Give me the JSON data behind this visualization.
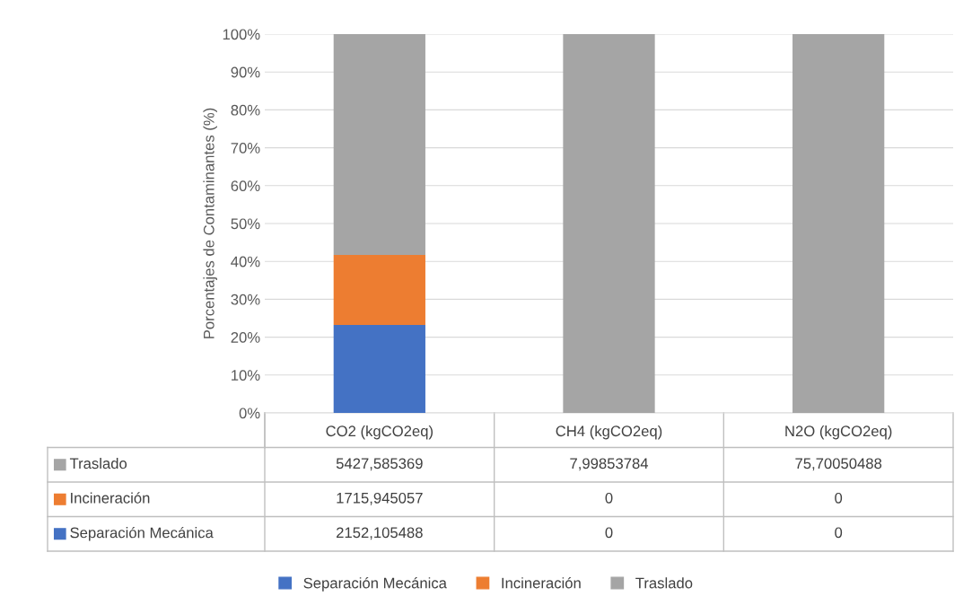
{
  "chart_data": {
    "type": "bar",
    "stacked": true,
    "ylabel": "Porcentajes de Contaminantes (%)",
    "categories": [
      "CO2 (kgCO2eq)",
      "CH4 (kgCO2eq)",
      "N2O (kgCO2eq)"
    ],
    "series": [
      {
        "name": "Separación Mecánica",
        "color": "#4472c4",
        "values": [
          23.2,
          0,
          0
        ],
        "value_labels": [
          "2152,105488",
          "0",
          "0"
        ]
      },
      {
        "name": "Incineración",
        "color": "#ed7d31",
        "values": [
          18.5,
          0,
          0
        ],
        "value_labels": [
          "1715,945057",
          "0",
          "0"
        ]
      },
      {
        "name": "Traslado",
        "color": "#a5a5a5",
        "values": [
          58.3,
          100,
          100
        ],
        "value_labels": [
          "5427,585369",
          "7,99853784",
          "75,70050488"
        ]
      }
    ],
    "ylim": [
      0,
      100
    ],
    "yticks": [
      {
        "value": 0,
        "label": "0%"
      },
      {
        "value": 10,
        "label": "10%"
      },
      {
        "value": 20,
        "label": "20%"
      },
      {
        "value": 30,
        "label": "30%"
      },
      {
        "value": 40,
        "label": "40%"
      },
      {
        "value": 50,
        "label": "50%"
      },
      {
        "value": 60,
        "label": "60%"
      },
      {
        "value": 70,
        "label": "70%"
      },
      {
        "value": 80,
        "label": "80%"
      },
      {
        "value": 90,
        "label": "90%"
      },
      {
        "value": 100,
        "label": "100%"
      }
    ],
    "grid": "y",
    "legend": "bottom"
  }
}
